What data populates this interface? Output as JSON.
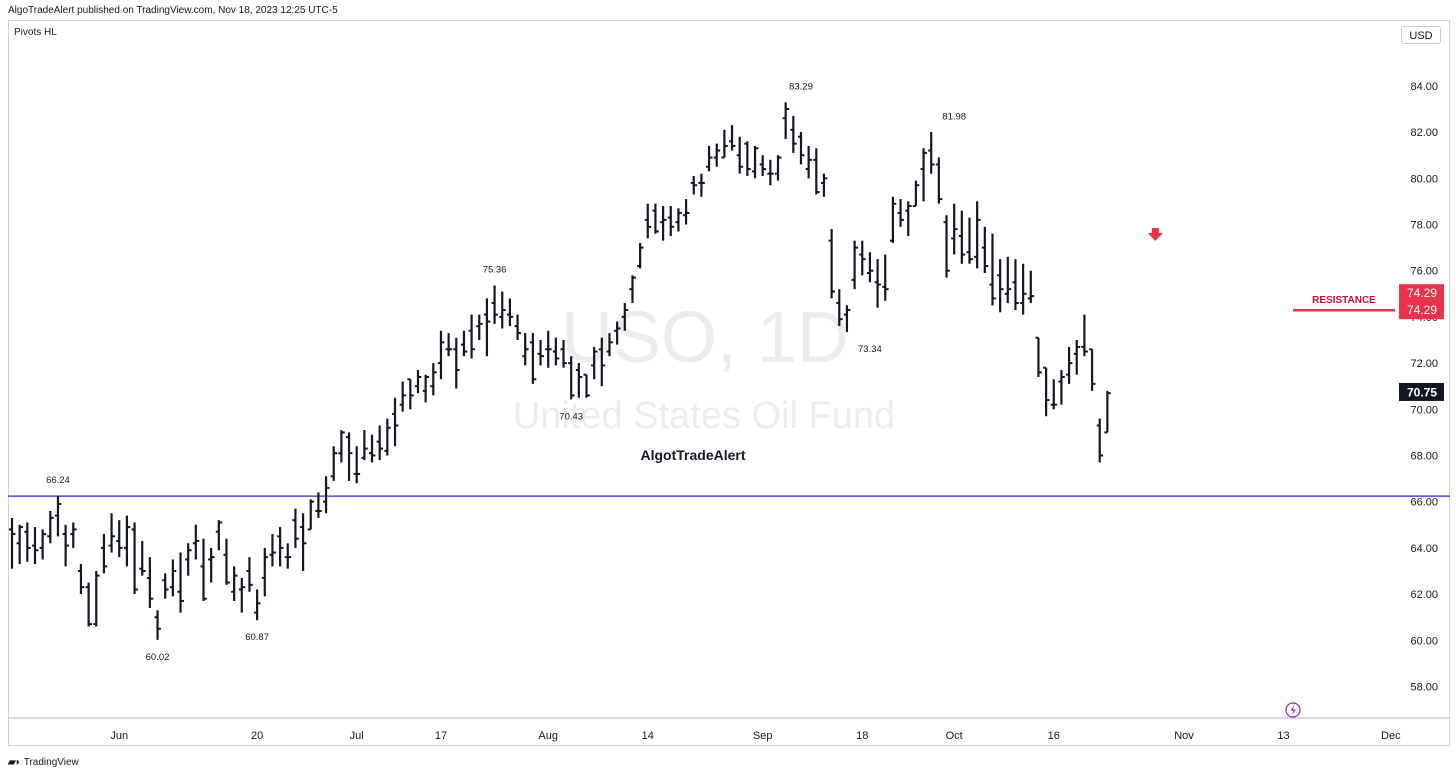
{
  "header": {
    "published_text": "AlgoTradeAlert published on TradingView.com, Nov 18, 2023 12:25 UTC-5"
  },
  "indicator_label": "Pivots HL",
  "currency_label": "USD",
  "footer": {
    "logo_icon": "tradingview-logo-icon",
    "brand": "TradingView"
  },
  "colors": {
    "bars": "#131722",
    "support_line": "#3f1bd1",
    "resistance": "#e8334a",
    "last_price_bg": "#131722",
    "watermark": "#ececef"
  },
  "chart_data": {
    "type": "ohlc",
    "title": "",
    "watermark_symbol": "USO, 1D",
    "watermark_name": "United States Oil Fund",
    "author_label": "AlgotTradeAlert",
    "ylim": [
      56.5,
      86.0
    ],
    "y_ticks": [
      "58.00",
      "60.00",
      "62.00",
      "64.00",
      "66.00",
      "68.00",
      "70.00",
      "72.00",
      "74.00",
      "76.00",
      "78.00",
      "80.00",
      "82.00",
      "84.00"
    ],
    "x_ticks": [
      {
        "label": "Jun",
        "i": 14
      },
      {
        "label": "20",
        "i": 32
      },
      {
        "label": "Jul",
        "i": 45
      },
      {
        "label": "17",
        "i": 56
      },
      {
        "label": "Aug",
        "i": 70
      },
      {
        "label": "14",
        "i": 83
      },
      {
        "label": "Sep",
        "i": 98
      },
      {
        "label": "18",
        "i": 111
      },
      {
        "label": "Oct",
        "i": 123
      },
      {
        "label": "16",
        "i": 136
      },
      {
        "label": "Nov",
        "i": 153
      },
      {
        "label": "13",
        "i": 166
      },
      {
        "label": "Dec",
        "i": 180
      }
    ],
    "dates_note": "",
    "bars": [
      [
        64.8,
        65.3,
        63.1,
        64.6
      ],
      [
        64.2,
        65.0,
        63.3,
        64.9
      ],
      [
        64.7,
        65.1,
        63.4,
        64.0
      ],
      [
        64.1,
        64.9,
        63.3,
        63.9
      ],
      [
        64.0,
        64.8,
        63.5,
        64.6
      ],
      [
        64.5,
        65.6,
        64.2,
        65.3
      ],
      [
        65.4,
        66.24,
        64.5,
        65.9
      ],
      [
        64.6,
        65.0,
        63.2,
        64.1
      ],
      [
        64.6,
        65.1,
        64.0,
        64.8
      ],
      [
        63.0,
        63.3,
        62.0,
        62.3
      ],
      [
        62.3,
        62.5,
        60.6,
        60.7
      ],
      [
        60.7,
        63.0,
        60.6,
        62.8
      ],
      [
        64.0,
        64.6,
        62.9,
        63.2
      ],
      [
        64.1,
        65.5,
        63.8,
        64.5
      ],
      [
        64.3,
        65.2,
        63.6,
        64.0
      ],
      [
        64.0,
        65.4,
        63.2,
        64.9
      ],
      [
        64.8,
        65.1,
        62.0,
        62.2
      ],
      [
        63.1,
        64.3,
        62.8,
        63.0
      ],
      [
        62.7,
        63.6,
        61.4,
        61.8
      ],
      [
        61.0,
        61.3,
        60.02,
        60.5
      ],
      [
        62.6,
        62.9,
        61.8,
        62.2
      ],
      [
        62.3,
        63.5,
        61.9,
        63.0
      ],
      [
        62.1,
        63.8,
        61.2,
        61.7
      ],
      [
        63.5,
        64.2,
        62.8,
        63.9
      ],
      [
        64.2,
        65.0,
        63.5,
        64.3
      ],
      [
        63.2,
        64.4,
        61.7,
        61.8
      ],
      [
        63.5,
        64.0,
        62.5,
        63.6
      ],
      [
        64.7,
        65.2,
        63.9,
        65.1
      ],
      [
        63.7,
        64.4,
        62.4,
        62.5
      ],
      [
        62.1,
        63.2,
        61.7,
        62.8
      ],
      [
        62.2,
        62.7,
        61.2,
        62.3
      ],
      [
        63.0,
        63.6,
        62.1,
        62.4
      ],
      [
        61.2,
        62.2,
        60.87,
        61.6
      ],
      [
        62.7,
        64.0,
        61.9,
        63.6
      ],
      [
        63.7,
        64.6,
        63.2,
        63.8
      ],
      [
        64.5,
        64.9,
        63.2,
        64.0
      ],
      [
        63.6,
        64.2,
        63.1,
        63.6
      ],
      [
        65.2,
        65.7,
        64.0,
        64.4
      ],
      [
        64.9,
        65.5,
        63.0,
        64.2
      ],
      [
        64.8,
        66.1,
        64.8,
        66.0
      ],
      [
        65.6,
        66.4,
        65.3,
        65.6
      ],
      [
        66.0,
        67.1,
        65.5,
        66.6
      ],
      [
        67.1,
        68.4,
        66.9,
        68.1
      ],
      [
        68.1,
        69.1,
        67.7,
        69.0
      ],
      [
        68.8,
        69.0,
        66.9,
        68.1
      ],
      [
        67.2,
        68.4,
        66.8,
        67.2
      ],
      [
        67.9,
        69.1,
        67.8,
        68.3
      ],
      [
        68.1,
        68.9,
        67.7,
        68.0
      ],
      [
        68.6,
        69.3,
        67.8,
        68.3
      ],
      [
        68.2,
        69.6,
        68.0,
        69.2
      ],
      [
        69.8,
        70.5,
        68.4,
        69.3
      ],
      [
        70.2,
        71.2,
        69.9,
        70.6
      ],
      [
        71.3,
        71.3,
        70.0,
        70.6
      ],
      [
        71.0,
        71.7,
        70.7,
        71.4
      ],
      [
        70.8,
        71.5,
        70.3,
        71.4
      ],
      [
        71.0,
        72.0,
        70.6,
        71.6
      ],
      [
        72.0,
        73.4,
        71.3,
        72.9
      ],
      [
        72.6,
        73.3,
        72.3,
        72.6
      ],
      [
        72.6,
        73.1,
        70.9,
        71.7
      ],
      [
        72.8,
        73.4,
        72.3,
        72.5
      ],
      [
        73.4,
        74.1,
        72.2,
        72.6
      ],
      [
        73.6,
        74.1,
        73.0,
        73.7
      ],
      [
        74.1,
        74.8,
        72.3,
        73.8
      ],
      [
        74.6,
        75.36,
        73.7,
        74.1
      ],
      [
        74.0,
        75.1,
        73.5,
        74.3
      ],
      [
        74.1,
        74.8,
        73.6,
        74.0
      ],
      [
        73.6,
        74.1,
        73.0,
        73.3
      ],
      [
        72.3,
        73.3,
        71.9,
        72.6
      ],
      [
        72.9,
        73.3,
        71.1,
        71.3
      ],
      [
        72.4,
        73.0,
        71.9,
        72.3
      ],
      [
        72.6,
        73.4,
        71.8,
        72.6
      ],
      [
        72.5,
        73.1,
        71.9,
        72.2
      ],
      [
        72.6,
        73.0,
        71.8,
        72.0
      ],
      [
        72.0,
        72.3,
        70.43,
        70.6
      ],
      [
        71.7,
        72.0,
        70.5,
        71.4
      ],
      [
        71.5,
        71.5,
        70.5,
        70.6
      ],
      [
        71.9,
        72.7,
        71.3,
        72.5
      ],
      [
        72.6,
        73.1,
        71.0,
        71.9
      ],
      [
        72.5,
        73.3,
        72.3,
        72.9
      ],
      [
        73.4,
        73.8,
        72.8,
        73.5
      ],
      [
        74.0,
        74.6,
        73.4,
        74.3
      ],
      [
        75.2,
        75.8,
        74.6,
        75.7
      ],
      [
        76.2,
        77.2,
        76.1,
        77.0
      ],
      [
        78.2,
        78.9,
        77.4,
        77.9
      ],
      [
        78.6,
        78.9,
        77.6,
        77.7
      ],
      [
        78.1,
        78.8,
        77.3,
        78.2
      ],
      [
        78.3,
        78.8,
        77.5,
        77.9
      ],
      [
        78.1,
        78.7,
        77.7,
        78.5
      ],
      [
        78.4,
        79.1,
        78.0,
        78.5
      ],
      [
        79.8,
        80.1,
        79.3,
        79.7
      ],
      [
        79.8,
        80.2,
        79.2,
        79.8
      ],
      [
        80.5,
        81.4,
        80.3,
        80.9
      ],
      [
        80.9,
        81.5,
        80.5,
        81.2
      ],
      [
        80.9,
        82.1,
        80.9,
        81.4
      ],
      [
        81.6,
        82.3,
        81.2,
        81.4
      ],
      [
        81.0,
        81.8,
        80.2,
        80.5
      ],
      [
        81.5,
        81.6,
        80.1,
        80.4
      ],
      [
        80.3,
        81.4,
        80.0,
        81.3
      ],
      [
        80.6,
        81.0,
        80.1,
        80.4
      ],
      [
        80.2,
        80.8,
        79.7,
        80.2
      ],
      [
        80.2,
        81.0,
        79.9,
        80.9
      ],
      [
        82.6,
        83.29,
        81.7,
        83.0
      ],
      [
        82.1,
        82.7,
        81.1,
        81.5
      ],
      [
        81.8,
        82.0,
        80.6,
        81.0
      ],
      [
        80.4,
        81.4,
        80.0,
        80.8
      ],
      [
        80.8,
        81.3,
        79.3,
        79.4
      ],
      [
        79.8,
        80.2,
        79.2,
        80.0
      ],
      [
        77.3,
        77.8,
        74.8,
        75.1
      ],
      [
        74.6,
        75.2,
        73.6,
        73.9
      ],
      [
        74.1,
        74.5,
        73.34,
        74.3
      ],
      [
        75.6,
        77.3,
        75.2,
        77.0
      ],
      [
        76.7,
        77.3,
        75.8,
        76.5
      ],
      [
        75.9,
        76.8,
        75.5,
        76.0
      ],
      [
        75.5,
        76.5,
        74.4,
        75.4
      ],
      [
        75.3,
        76.7,
        74.7,
        75.2
      ],
      [
        77.3,
        79.2,
        77.2,
        78.9
      ],
      [
        78.5,
        79.1,
        77.9,
        78.2
      ],
      [
        78.6,
        79.0,
        77.5,
        78.8
      ],
      [
        78.8,
        79.9,
        78.8,
        79.7
      ],
      [
        80.4,
        81.3,
        79.0,
        81.1
      ],
      [
        81.2,
        82.0,
        80.2,
        80.6
      ],
      [
        80.6,
        80.9,
        78.9,
        79.1
      ],
      [
        78.1,
        78.4,
        75.7,
        76.0
      ],
      [
        77.4,
        78.9,
        76.7,
        77.8
      ],
      [
        77.5,
        78.6,
        76.3,
        76.7
      ],
      [
        76.8,
        78.3,
        76.3,
        76.5
      ],
      [
        76.6,
        79.0,
        76.1,
        78.2
      ],
      [
        77.0,
        77.9,
        75.9,
        76.2
      ],
      [
        75.4,
        77.6,
        74.5,
        74.8
      ],
      [
        75.8,
        76.5,
        74.2,
        75.2
      ],
      [
        75.0,
        76.6,
        74.6,
        75.2
      ],
      [
        75.5,
        76.5,
        74.3,
        74.6
      ],
      [
        74.6,
        76.3,
        74.1,
        75.0
      ],
      [
        74.8,
        76.0,
        74.6,
        74.9
      ],
      [
        73.1,
        73.1,
        71.4,
        71.6
      ],
      [
        71.8,
        71.8,
        69.7,
        70.4
      ],
      [
        70.2,
        71.3,
        70.0,
        70.2
      ],
      [
        71.2,
        71.7,
        70.2,
        71.4
      ],
      [
        71.5,
        72.7,
        71.1,
        72.0
      ],
      [
        72.4,
        73.0,
        71.5,
        72.7
      ],
      [
        72.7,
        74.1,
        72.3,
        72.5
      ],
      [
        72.6,
        72.6,
        70.8,
        71.1
      ],
      [
        69.3,
        69.6,
        67.7,
        68.0
      ],
      [
        69.0,
        70.8,
        69.0,
        70.7
      ]
    ],
    "pivot_labels": [
      {
        "i": 6,
        "value": "66.24",
        "pos": "above"
      },
      {
        "i": 19,
        "value": "60.02",
        "pos": "below"
      },
      {
        "i": 32,
        "value": "60.87",
        "pos": "below"
      },
      {
        "i": 63,
        "value": "75.36",
        "pos": "above"
      },
      {
        "i": 73,
        "value": "70.43",
        "pos": "below"
      },
      {
        "i": 103,
        "value": "83.29",
        "pos": "above"
      },
      {
        "i": 112,
        "value": "73.34",
        "pos": "below"
      },
      {
        "i": 123,
        "value": "81.98",
        "pos": "above"
      }
    ],
    "support_level": 66.24,
    "resistance": {
      "label": "RESISTANCE",
      "value": 74.29,
      "price_tags": [
        "74.29",
        "74.29"
      ],
      "from_i": 161,
      "to_i": 174
    },
    "arrow_marker": {
      "i": 149,
      "value": 77.5,
      "direction": "down"
    },
    "last_price": {
      "value": 70.75,
      "label": "70.75"
    },
    "flash_icon": "lightning-bolt-icon"
  }
}
